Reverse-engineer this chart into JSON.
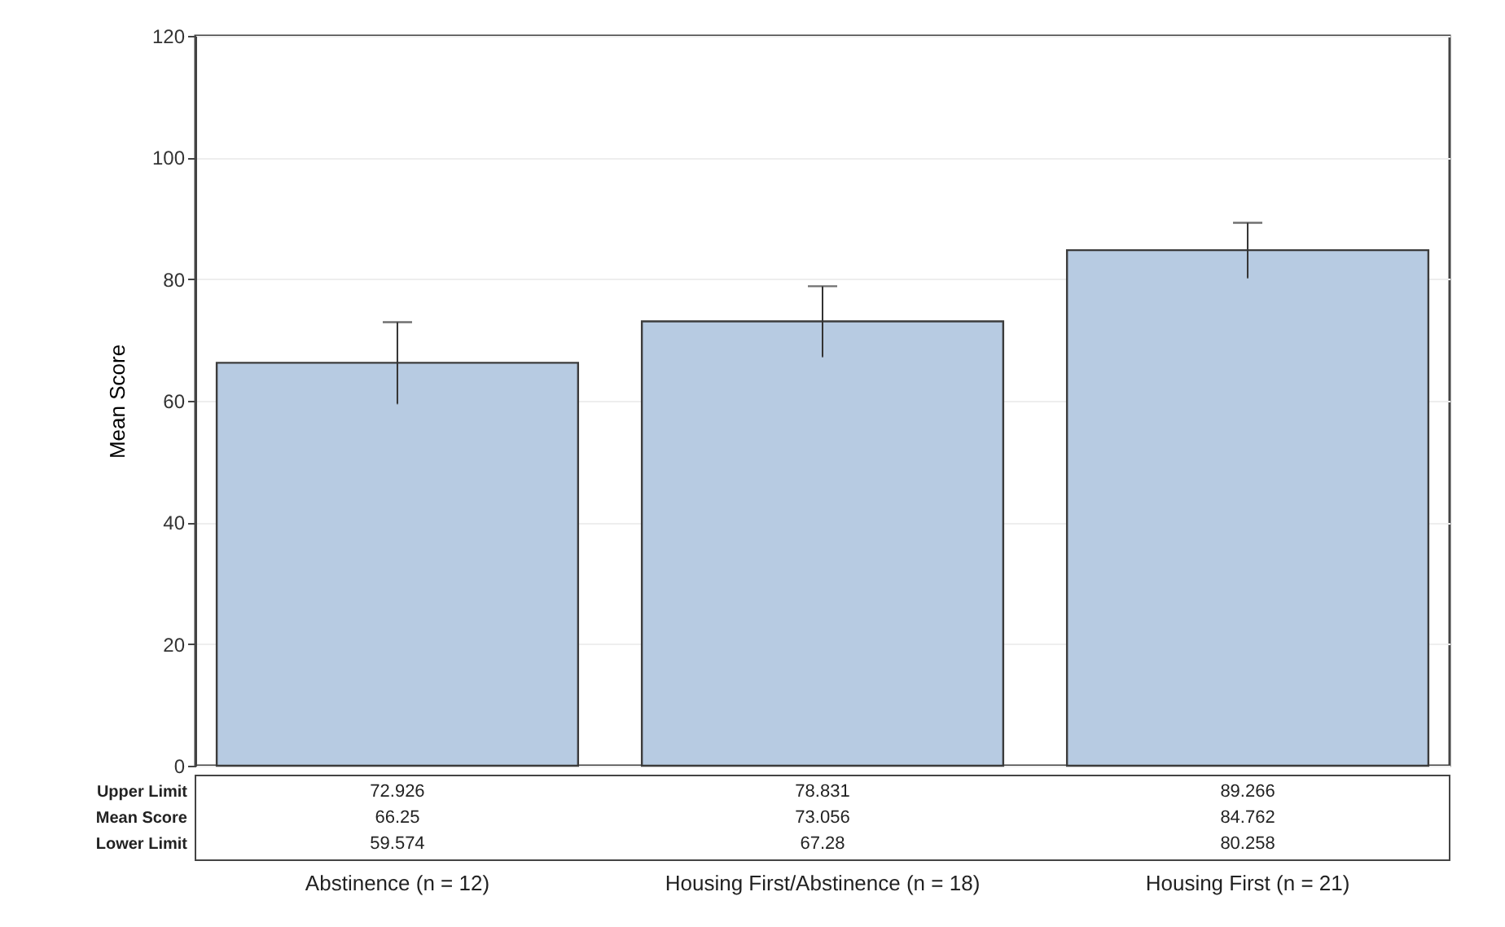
{
  "chart_data": {
    "type": "bar",
    "ylabel": "Mean Score",
    "categories": [
      "Abstinence (n = 12)",
      "Housing First/Abstinence (n = 18)",
      "Housing First (n = 21)"
    ],
    "values": [
      66.25,
      73.056,
      84.762
    ],
    "errors": [
      [
        59.574,
        72.926
      ],
      [
        67.28,
        78.831
      ],
      [
        80.258,
        89.266
      ]
    ],
    "color": "#b7cbe2",
    "ylim": [
      0,
      120
    ],
    "yticks": [
      0,
      20,
      40,
      60,
      80,
      100,
      120
    ],
    "grid": "y",
    "data_labels": true,
    "annotations": [
      "Upper Limit",
      "Mean Score",
      "Lower Limit",
      "72.926",
      "78.831",
      "89.266",
      "59.574",
      "67.28",
      "80.258"
    ]
  }
}
